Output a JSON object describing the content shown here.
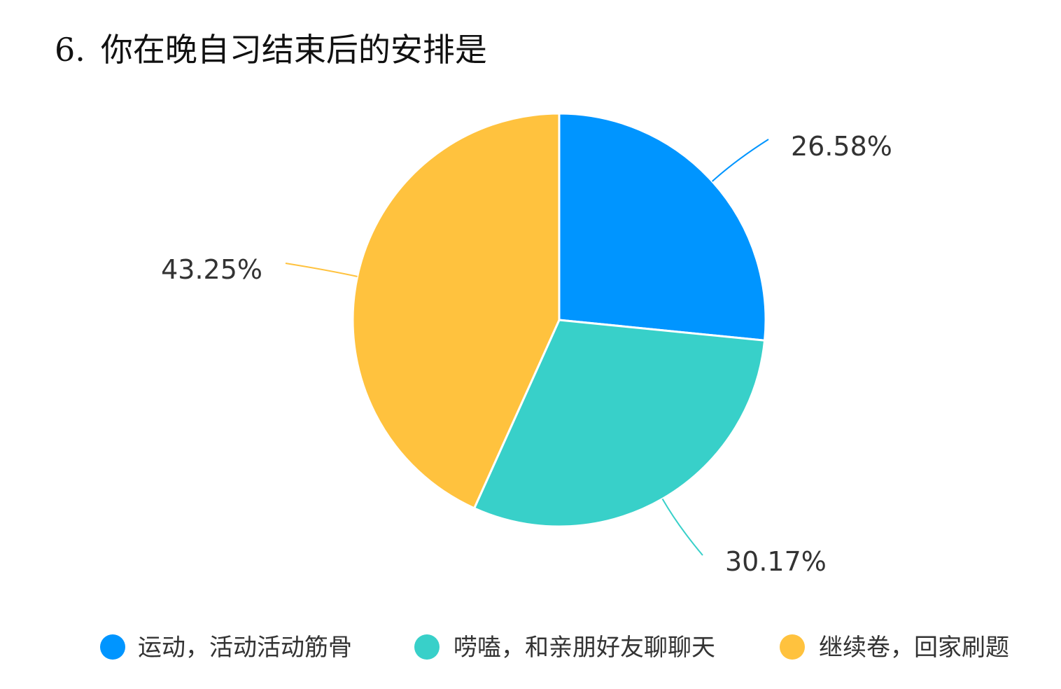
{
  "title": {
    "number": "6.",
    "text": "你在晚自习结束后的安排是"
  },
  "chart_data": {
    "type": "pie",
    "title": "你在晚自习结束后的安排是",
    "categories": [
      "运动，活动活动筋骨",
      "唠嗑，和亲朋好友聊聊天",
      "继续卷，回家刷题"
    ],
    "values": [
      26.58,
      30.17,
      43.25
    ],
    "labels": [
      "26.58%",
      "30.17%",
      "43.25%"
    ],
    "colors": [
      "#0095ff",
      "#38d0c9",
      "#ffc23e"
    ],
    "start_angle": "12 o'clock",
    "direction": "clockwise",
    "legend": "bottom"
  }
}
